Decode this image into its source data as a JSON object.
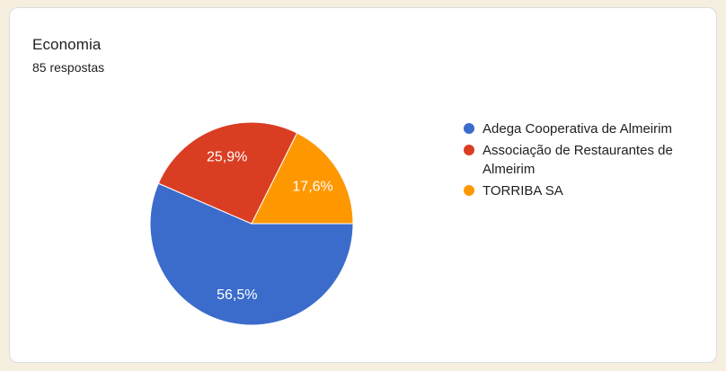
{
  "page": {
    "background_color": "#F6EFDF"
  },
  "card": {
    "title": "Economia",
    "subtitle": "85 respostas",
    "background_color": "#FFFFFF",
    "border_color": "#DADCE0"
  },
  "chart_data": {
    "type": "pie",
    "title": "Economia",
    "subtitle": "85 respostas",
    "responses_total": 85,
    "start_angle_deg": 0,
    "direction": "clockwise",
    "legend_position": "right",
    "slice_label_color": "#FFFFFF",
    "slice_separator_color": "#FFFFFF",
    "slices": [
      {
        "label": "Adega Cooperativa de Almeirim",
        "pct": 56.5,
        "pct_label": "56,5%",
        "color": "#3B6CCB"
      },
      {
        "label": "Associação de Restaurantes de Almeirim",
        "pct": 25.9,
        "pct_label": "25,9%",
        "color": "#DA3E22"
      },
      {
        "label": "TORRIBA SA",
        "pct": 17.6,
        "pct_label": "17,6%",
        "color": "#FF9800"
      }
    ]
  }
}
